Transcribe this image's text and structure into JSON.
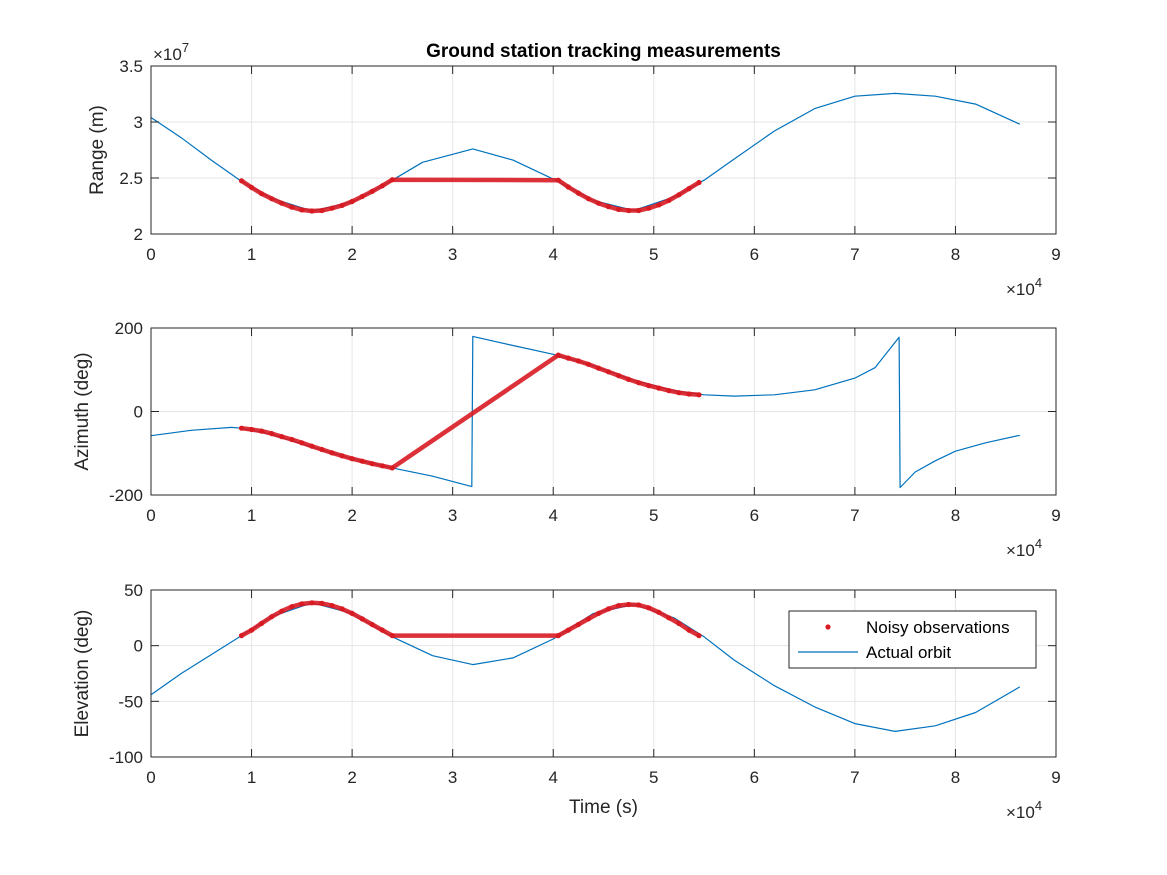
{
  "chart_data": [
    {
      "type": "line",
      "title": "Ground station tracking measurements",
      "xlabel": "",
      "ylabel": "Range (m)",
      "xlim": [
        0,
        90000
      ],
      "ylim": [
        20000000,
        35000000
      ],
      "x_ticks": [
        0,
        10000,
        20000,
        30000,
        40000,
        50000,
        60000,
        70000,
        80000,
        90000
      ],
      "x_tick_labels": [
        "0",
        "1",
        "2",
        "3",
        "4",
        "5",
        "6",
        "7",
        "8",
        "9"
      ],
      "x_exponent": "×10^4",
      "y_ticks": [
        20000000,
        25000000,
        30000000,
        35000000
      ],
      "y_tick_labels": [
        "2",
        "2.5",
        "3",
        "3.5"
      ],
      "y_exponent": "×10^7",
      "grid": true,
      "series": [
        {
          "name": "Actual orbit",
          "color": "#0072BD",
          "style": "line",
          "x": [
            0,
            3000,
            6000,
            9000,
            12000,
            16000,
            20000,
            24000,
            27000,
            32000,
            36000,
            40000,
            44000,
            48000,
            52000,
            55000,
            58000,
            62000,
            66000,
            70000,
            74000,
            78000,
            82000,
            86400
          ],
          "y": [
            30400000,
            28600000,
            26600000,
            24700000,
            23200000,
            22050000,
            22850000,
            24800000,
            26400000,
            27600000,
            26600000,
            24900000,
            23000000,
            22100000,
            23300000,
            24800000,
            26700000,
            29200000,
            31200000,
            32300000,
            32550000,
            32300000,
            31600000,
            29800000
          ]
        },
        {
          "name": "Noisy observations",
          "color": "#D81B23",
          "style": "markers",
          "x": [
            9000,
            10000,
            11000,
            12000,
            13000,
            14000,
            15000,
            16000,
            17000,
            18000,
            19000,
            20000,
            21000,
            22000,
            23000,
            24000,
            40500,
            41500,
            42500,
            43500,
            44500,
            45500,
            46500,
            47500,
            48500,
            49500,
            50500,
            51500,
            52500,
            53500,
            54500
          ],
          "y": [
            24750000,
            24150000,
            23600000,
            23150000,
            22750000,
            22400000,
            22150000,
            22050000,
            22100000,
            22300000,
            22550000,
            22900000,
            23350000,
            23800000,
            24300000,
            24850000,
            24800000,
            24200000,
            23650000,
            23150000,
            22750000,
            22450000,
            22200000,
            22100000,
            22100000,
            22300000,
            22600000,
            23000000,
            23500000,
            24050000,
            24600000
          ]
        }
      ]
    },
    {
      "type": "line",
      "title": "",
      "xlabel": "",
      "ylabel": "Azimuth (deg)",
      "xlim": [
        0,
        90000
      ],
      "ylim": [
        -200,
        200
      ],
      "x_ticks": [
        0,
        10000,
        20000,
        30000,
        40000,
        50000,
        60000,
        70000,
        80000,
        90000
      ],
      "x_tick_labels": [
        "0",
        "1",
        "2",
        "3",
        "4",
        "5",
        "6",
        "7",
        "8",
        "9"
      ],
      "x_exponent": "×10^4",
      "y_ticks": [
        -200,
        0,
        200
      ],
      "y_tick_labels": [
        "-200",
        "0",
        "200"
      ],
      "grid": true,
      "series": [
        {
          "name": "Actual orbit",
          "color": "#0072BD",
          "style": "line",
          "x": [
            0,
            4000,
            8000,
            9000,
            12000,
            16000,
            20000,
            24000,
            28000,
            31900,
            32000,
            36000,
            40000,
            44000,
            48000,
            52000,
            55000,
            58000,
            62000,
            66000,
            70000,
            72000,
            74400,
            74500,
            76000,
            78000,
            80000,
            83000,
            86400
          ],
          "y": [
            -58,
            -45,
            -38,
            -40,
            -55,
            -85,
            -113,
            -135,
            -155,
            -180,
            180,
            158,
            137,
            110,
            75,
            50,
            40,
            37,
            40,
            52,
            80,
            105,
            178,
            -182,
            -145,
            -118,
            -95,
            -75,
            -57
          ]
        },
        {
          "name": "Noisy observations",
          "color": "#D81B23",
          "style": "markers",
          "x": [
            9000,
            10000,
            11000,
            12000,
            13000,
            14000,
            15000,
            16000,
            17000,
            18000,
            19000,
            20000,
            21000,
            22000,
            23000,
            24000,
            40500,
            41500,
            42500,
            43500,
            44500,
            45500,
            46500,
            47500,
            48500,
            49500,
            50500,
            51500,
            52500,
            53500,
            54500
          ],
          "y": [
            -40,
            -43,
            -47,
            -53,
            -60,
            -67,
            -75,
            -83,
            -91,
            -99,
            -106,
            -113,
            -119,
            -125,
            -130,
            -135,
            135,
            128,
            121,
            113,
            104,
            95,
            86,
            77,
            69,
            62,
            56,
            50,
            45,
            42,
            40
          ]
        }
      ]
    },
    {
      "type": "line",
      "title": "",
      "xlabel": "Time (s)",
      "ylabel": "Elevation (deg)",
      "xlim": [
        0,
        90000
      ],
      "ylim": [
        -100,
        50
      ],
      "x_ticks": [
        0,
        10000,
        20000,
        30000,
        40000,
        50000,
        60000,
        70000,
        80000,
        90000
      ],
      "x_tick_labels": [
        "0",
        "1",
        "2",
        "3",
        "4",
        "5",
        "6",
        "7",
        "8",
        "9"
      ],
      "x_exponent": "×10^4",
      "y_ticks": [
        -100,
        -50,
        0,
        50
      ],
      "y_tick_labels": [
        "-100",
        "-50",
        "0",
        "50"
      ],
      "grid": true,
      "legend": "top-right",
      "series": [
        {
          "name": "Noisy observations",
          "color": "#D81B23",
          "style": "markers",
          "x": [
            9000,
            10000,
            11000,
            12000,
            13000,
            14000,
            15000,
            16000,
            17000,
            18000,
            19000,
            20000,
            21000,
            22000,
            23000,
            24000,
            40500,
            41500,
            42500,
            43500,
            44500,
            45500,
            46500,
            47500,
            48500,
            49500,
            50500,
            51500,
            52500,
            53500,
            54500
          ],
          "y": [
            9,
            14,
            20,
            26,
            31,
            35,
            37.5,
            38.5,
            38,
            36,
            33,
            29,
            24,
            19,
            14,
            9,
            9,
            14,
            19,
            24,
            29,
            33,
            36,
            37,
            36.5,
            34,
            30,
            25,
            20,
            14,
            9
          ]
        },
        {
          "name": "Actual orbit",
          "color": "#0072BD",
          "style": "line",
          "x": [
            0,
            3000,
            6000,
            9000,
            12000,
            16000,
            20000,
            24000,
            28000,
            32000,
            36000,
            40000,
            44000,
            48000,
            52000,
            55000,
            58000,
            62000,
            66000,
            70000,
            74000,
            78000,
            82000,
            86400
          ],
          "y": [
            -44,
            -25,
            -8,
            9,
            26,
            38.5,
            29,
            8,
            -9,
            -17,
            -11,
            6,
            29,
            37,
            25,
            8,
            -13,
            -36,
            -55,
            -70,
            -77,
            -72,
            -60,
            -37
          ]
        }
      ]
    }
  ]
}
